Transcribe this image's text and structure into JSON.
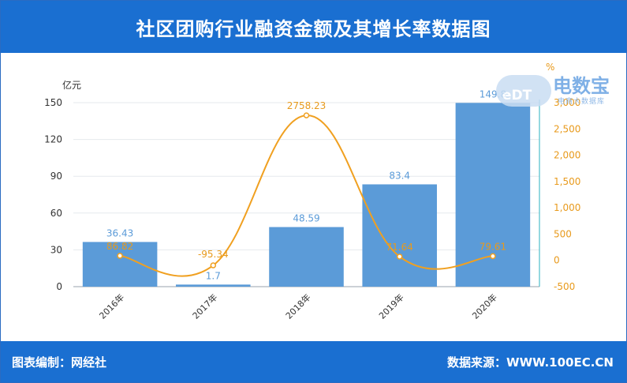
{
  "title": "社区团购行业融资金额及其增长率数据图",
  "footer": {
    "left": "图表编制：网经社",
    "right": "数据来源：WWW.100EC.CN"
  },
  "watermark": {
    "logo_text": "eDT",
    "brand": "电数宝",
    "sub": "电商大数据库"
  },
  "colors": {
    "header": "#1a6fd1",
    "bar": "#5b9bd8",
    "line": "#f0a020",
    "bar_label": "#5b9bd8",
    "line_label": "#e89a1c"
  },
  "chart_data": {
    "type": "bar",
    "categories": [
      "2016年",
      "2017年",
      "2018年",
      "2019年",
      "2020年"
    ],
    "series": [
      {
        "values": [
          36.43,
          1.7,
          48.59,
          83.4,
          149.8
        ],
        "axis": "left",
        "labels": [
          "36.43",
          "1.7",
          "48.59",
          "83.4",
          "149.8"
        ]
      },
      {
        "type": "line",
        "values": [
          86.82,
          -95.34,
          2758.23,
          71.64,
          79.61
        ],
        "axis": "right",
        "labels": [
          "86.82",
          "-95.34",
          "2758.23",
          "71.64",
          "79.61"
        ]
      }
    ],
    "left_axis": {
      "unit": "亿元",
      "ylim": [
        0,
        150
      ],
      "ticks": [
        "0",
        "30",
        "60",
        "90",
        "120",
        "150"
      ]
    },
    "right_axis": {
      "unit": "%",
      "ylim": [
        -500,
        3000
      ],
      "ticks": [
        "-500",
        "0",
        "500",
        "1,000",
        "1,500",
        "2,000",
        "2,500",
        "3,000"
      ]
    },
    "grid": true
  }
}
